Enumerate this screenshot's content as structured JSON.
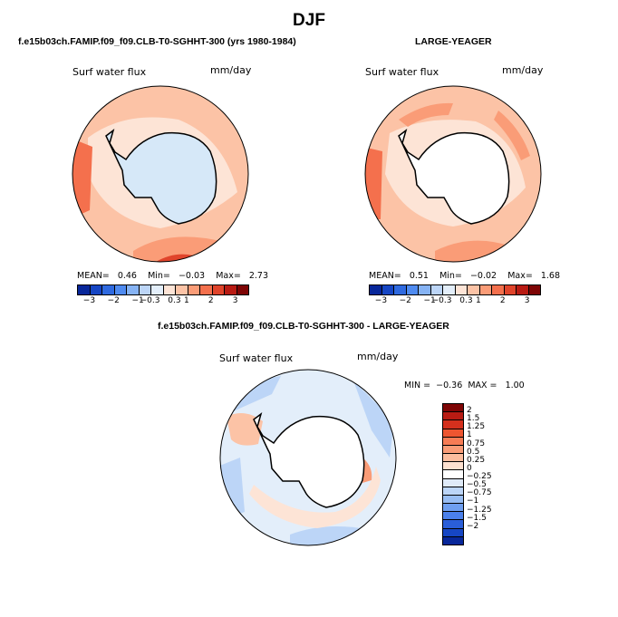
{
  "title": "DJF",
  "panels": [
    {
      "case_label": "f.e15b03ch.FAMIP.f09_f09.CLB-T0-SGHHT-300 (yrs 1980-1984)",
      "variable": "Surf water flux",
      "units": "mm/day",
      "stats": {
        "mean_label": "MEAN=",
        "mean": "0.46",
        "min_label": "Min=",
        "min": "−0.03",
        "max_label": "Max=",
        "max": "2.73"
      },
      "land_fill": "#d6e8f8"
    },
    {
      "case_label": "LARGE-YEAGER",
      "variable": "Surf water flux",
      "units": "mm/day",
      "stats": {
        "mean_label": "MEAN=",
        "mean": "0.51",
        "min_label": "Min=",
        "min": "−0.02",
        "max_label": "Max=",
        "max": "1.68"
      },
      "land_fill": "#ffffff"
    },
    {
      "case_label": "f.e15b03ch.FAMIP.f09_f09.CLB-T0-SGHHT-300 - LARGE-YEAGER",
      "variable": "Surf water flux",
      "units": "mm/day",
      "stats": {
        "min_label": "MIN =",
        "min": "−0.36",
        "max_label": "MAX =",
        "max": "1.00"
      },
      "land_fill": "#ffffff"
    }
  ],
  "horizontal_colorbar": {
    "colors": [
      "#08279a",
      "#1646c4",
      "#2f6ae0",
      "#4f8bf0",
      "#86b3f4",
      "#bcd5f7",
      "#e3eefa",
      "#fde4d6",
      "#fcc3a6",
      "#fa9c77",
      "#f4704d",
      "#e0442b",
      "#b81b13",
      "#7e0505"
    ],
    "ticks": [
      "−3",
      "−2",
      "−1",
      "−0.3",
      "0.3",
      "1",
      "2",
      "3"
    ]
  },
  "vertical_colorbar": {
    "colors": [
      "#7e0505",
      "#b81b13",
      "#d4301d",
      "#ed5530",
      "#f77c55",
      "#fa9c77",
      "#fcbd9e",
      "#fde0cf",
      "#ffffff",
      "#dfeaf8",
      "#bcd5f7",
      "#98bdf3",
      "#6f9ff0",
      "#4b80ea",
      "#2a5ed8",
      "#1646c4",
      "#08279a"
    ],
    "ticks": [
      "2",
      "1.5",
      "1.25",
      "1",
      "0.75",
      "0.5",
      "0.25",
      "0",
      "−0.25",
      "−0.5",
      "−0.75",
      "−1",
      "−1.25",
      "−1.5",
      "−2"
    ]
  },
  "map_colors": {
    "ocean_light": "#fde4d6",
    "ocean_mid": "#fcc3a6",
    "ocean_high": "#fa9c77",
    "ocean_peak": "#f4704d",
    "diff_base": "#e3eefa",
    "diff_pos": "#fcc3a6",
    "diff_neg": "#bcd5f7"
  }
}
